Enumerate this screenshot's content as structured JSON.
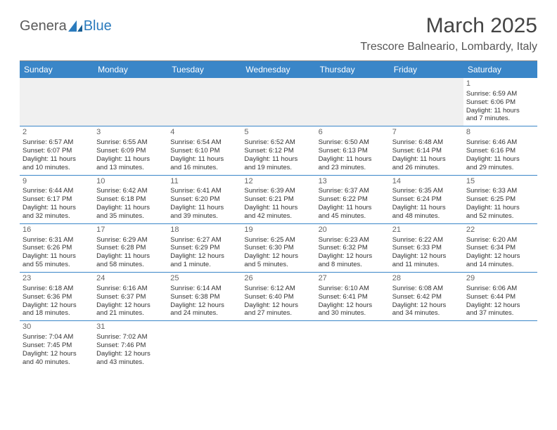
{
  "brand": {
    "part1": "Genera",
    "part2": "Blue"
  },
  "title": "March 2025",
  "location": "Trescore Balneario, Lombardy, Italy",
  "colors": {
    "header_bg": "#3a86c8",
    "header_text": "#ffffff",
    "row_divider": "#3a86c8",
    "blank_bg": "#f0f0f0",
    "brand_blue": "#2b7bbd",
    "brand_gray": "#5a5a5a"
  },
  "weekdays": [
    "Sunday",
    "Monday",
    "Tuesday",
    "Wednesday",
    "Thursday",
    "Friday",
    "Saturday"
  ],
  "weeks": [
    [
      null,
      null,
      null,
      null,
      null,
      null,
      {
        "day": "1",
        "sunrise": "Sunrise: 6:59 AM",
        "sunset": "Sunset: 6:06 PM",
        "daylight1": "Daylight: 11 hours",
        "daylight2": "and 7 minutes."
      }
    ],
    [
      {
        "day": "2",
        "sunrise": "Sunrise: 6:57 AM",
        "sunset": "Sunset: 6:07 PM",
        "daylight1": "Daylight: 11 hours",
        "daylight2": "and 10 minutes."
      },
      {
        "day": "3",
        "sunrise": "Sunrise: 6:55 AM",
        "sunset": "Sunset: 6:09 PM",
        "daylight1": "Daylight: 11 hours",
        "daylight2": "and 13 minutes."
      },
      {
        "day": "4",
        "sunrise": "Sunrise: 6:54 AM",
        "sunset": "Sunset: 6:10 PM",
        "daylight1": "Daylight: 11 hours",
        "daylight2": "and 16 minutes."
      },
      {
        "day": "5",
        "sunrise": "Sunrise: 6:52 AM",
        "sunset": "Sunset: 6:12 PM",
        "daylight1": "Daylight: 11 hours",
        "daylight2": "and 19 minutes."
      },
      {
        "day": "6",
        "sunrise": "Sunrise: 6:50 AM",
        "sunset": "Sunset: 6:13 PM",
        "daylight1": "Daylight: 11 hours",
        "daylight2": "and 23 minutes."
      },
      {
        "day": "7",
        "sunrise": "Sunrise: 6:48 AM",
        "sunset": "Sunset: 6:14 PM",
        "daylight1": "Daylight: 11 hours",
        "daylight2": "and 26 minutes."
      },
      {
        "day": "8",
        "sunrise": "Sunrise: 6:46 AM",
        "sunset": "Sunset: 6:16 PM",
        "daylight1": "Daylight: 11 hours",
        "daylight2": "and 29 minutes."
      }
    ],
    [
      {
        "day": "9",
        "sunrise": "Sunrise: 6:44 AM",
        "sunset": "Sunset: 6:17 PM",
        "daylight1": "Daylight: 11 hours",
        "daylight2": "and 32 minutes."
      },
      {
        "day": "10",
        "sunrise": "Sunrise: 6:42 AM",
        "sunset": "Sunset: 6:18 PM",
        "daylight1": "Daylight: 11 hours",
        "daylight2": "and 35 minutes."
      },
      {
        "day": "11",
        "sunrise": "Sunrise: 6:41 AM",
        "sunset": "Sunset: 6:20 PM",
        "daylight1": "Daylight: 11 hours",
        "daylight2": "and 39 minutes."
      },
      {
        "day": "12",
        "sunrise": "Sunrise: 6:39 AM",
        "sunset": "Sunset: 6:21 PM",
        "daylight1": "Daylight: 11 hours",
        "daylight2": "and 42 minutes."
      },
      {
        "day": "13",
        "sunrise": "Sunrise: 6:37 AM",
        "sunset": "Sunset: 6:22 PM",
        "daylight1": "Daylight: 11 hours",
        "daylight2": "and 45 minutes."
      },
      {
        "day": "14",
        "sunrise": "Sunrise: 6:35 AM",
        "sunset": "Sunset: 6:24 PM",
        "daylight1": "Daylight: 11 hours",
        "daylight2": "and 48 minutes."
      },
      {
        "day": "15",
        "sunrise": "Sunrise: 6:33 AM",
        "sunset": "Sunset: 6:25 PM",
        "daylight1": "Daylight: 11 hours",
        "daylight2": "and 52 minutes."
      }
    ],
    [
      {
        "day": "16",
        "sunrise": "Sunrise: 6:31 AM",
        "sunset": "Sunset: 6:26 PM",
        "daylight1": "Daylight: 11 hours",
        "daylight2": "and 55 minutes."
      },
      {
        "day": "17",
        "sunrise": "Sunrise: 6:29 AM",
        "sunset": "Sunset: 6:28 PM",
        "daylight1": "Daylight: 11 hours",
        "daylight2": "and 58 minutes."
      },
      {
        "day": "18",
        "sunrise": "Sunrise: 6:27 AM",
        "sunset": "Sunset: 6:29 PM",
        "daylight1": "Daylight: 12 hours",
        "daylight2": "and 1 minute."
      },
      {
        "day": "19",
        "sunrise": "Sunrise: 6:25 AM",
        "sunset": "Sunset: 6:30 PM",
        "daylight1": "Daylight: 12 hours",
        "daylight2": "and 5 minutes."
      },
      {
        "day": "20",
        "sunrise": "Sunrise: 6:23 AM",
        "sunset": "Sunset: 6:32 PM",
        "daylight1": "Daylight: 12 hours",
        "daylight2": "and 8 minutes."
      },
      {
        "day": "21",
        "sunrise": "Sunrise: 6:22 AM",
        "sunset": "Sunset: 6:33 PM",
        "daylight1": "Daylight: 12 hours",
        "daylight2": "and 11 minutes."
      },
      {
        "day": "22",
        "sunrise": "Sunrise: 6:20 AM",
        "sunset": "Sunset: 6:34 PM",
        "daylight1": "Daylight: 12 hours",
        "daylight2": "and 14 minutes."
      }
    ],
    [
      {
        "day": "23",
        "sunrise": "Sunrise: 6:18 AM",
        "sunset": "Sunset: 6:36 PM",
        "daylight1": "Daylight: 12 hours",
        "daylight2": "and 18 minutes."
      },
      {
        "day": "24",
        "sunrise": "Sunrise: 6:16 AM",
        "sunset": "Sunset: 6:37 PM",
        "daylight1": "Daylight: 12 hours",
        "daylight2": "and 21 minutes."
      },
      {
        "day": "25",
        "sunrise": "Sunrise: 6:14 AM",
        "sunset": "Sunset: 6:38 PM",
        "daylight1": "Daylight: 12 hours",
        "daylight2": "and 24 minutes."
      },
      {
        "day": "26",
        "sunrise": "Sunrise: 6:12 AM",
        "sunset": "Sunset: 6:40 PM",
        "daylight1": "Daylight: 12 hours",
        "daylight2": "and 27 minutes."
      },
      {
        "day": "27",
        "sunrise": "Sunrise: 6:10 AM",
        "sunset": "Sunset: 6:41 PM",
        "daylight1": "Daylight: 12 hours",
        "daylight2": "and 30 minutes."
      },
      {
        "day": "28",
        "sunrise": "Sunrise: 6:08 AM",
        "sunset": "Sunset: 6:42 PM",
        "daylight1": "Daylight: 12 hours",
        "daylight2": "and 34 minutes."
      },
      {
        "day": "29",
        "sunrise": "Sunrise: 6:06 AM",
        "sunset": "Sunset: 6:44 PM",
        "daylight1": "Daylight: 12 hours",
        "daylight2": "and 37 minutes."
      }
    ],
    [
      {
        "day": "30",
        "sunrise": "Sunrise: 7:04 AM",
        "sunset": "Sunset: 7:45 PM",
        "daylight1": "Daylight: 12 hours",
        "daylight2": "and 40 minutes."
      },
      {
        "day": "31",
        "sunrise": "Sunrise: 7:02 AM",
        "sunset": "Sunset: 7:46 PM",
        "daylight1": "Daylight: 12 hours",
        "daylight2": "and 43 minutes."
      },
      null,
      null,
      null,
      null,
      null
    ]
  ]
}
